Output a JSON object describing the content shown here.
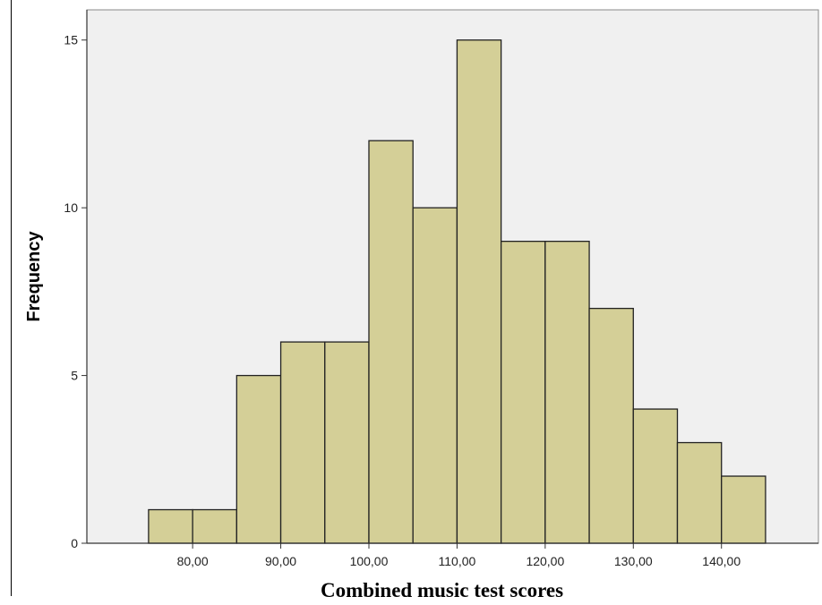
{
  "chart_data": {
    "type": "bar",
    "bins": [
      {
        "start": 75,
        "end": 80,
        "count": 1
      },
      {
        "start": 80,
        "end": 85,
        "count": 1
      },
      {
        "start": 85,
        "end": 90,
        "count": 5
      },
      {
        "start": 90,
        "end": 95,
        "count": 6
      },
      {
        "start": 95,
        "end": 100,
        "count": 6
      },
      {
        "start": 100,
        "end": 105,
        "count": 12
      },
      {
        "start": 105,
        "end": 110,
        "count": 10
      },
      {
        "start": 110,
        "end": 115,
        "count": 15
      },
      {
        "start": 115,
        "end": 120,
        "count": 9
      },
      {
        "start": 120,
        "end": 125,
        "count": 9
      },
      {
        "start": 125,
        "end": 130,
        "count": 7
      },
      {
        "start": 130,
        "end": 135,
        "count": 4
      },
      {
        "start": 135,
        "end": 140,
        "count": 3
      },
      {
        "start": 140,
        "end": 145,
        "count": 2
      }
    ],
    "xlabel": "Combined music test scores",
    "ylabel": "Frequency",
    "xticks": [
      {
        "value": 80,
        "label": "80,00"
      },
      {
        "value": 90,
        "label": "90,00"
      },
      {
        "value": 100,
        "label": "100,00"
      },
      {
        "value": 110,
        "label": "110,00"
      },
      {
        "value": 120,
        "label": "120,00"
      },
      {
        "value": 130,
        "label": "130,00"
      },
      {
        "value": 140,
        "label": "140,00"
      }
    ],
    "yticks": [
      {
        "value": 0,
        "label": "0"
      },
      {
        "value": 5,
        "label": "5"
      },
      {
        "value": 10,
        "label": "10"
      },
      {
        "value": 15,
        "label": "15"
      }
    ],
    "xlim": [
      68,
      151
    ],
    "ylim": [
      0,
      15.9
    ],
    "grid": false,
    "colors": {
      "bar_fill": "#d4cf97",
      "bar_stroke": "#222222",
      "plot_background": "#f0f0f0"
    }
  }
}
